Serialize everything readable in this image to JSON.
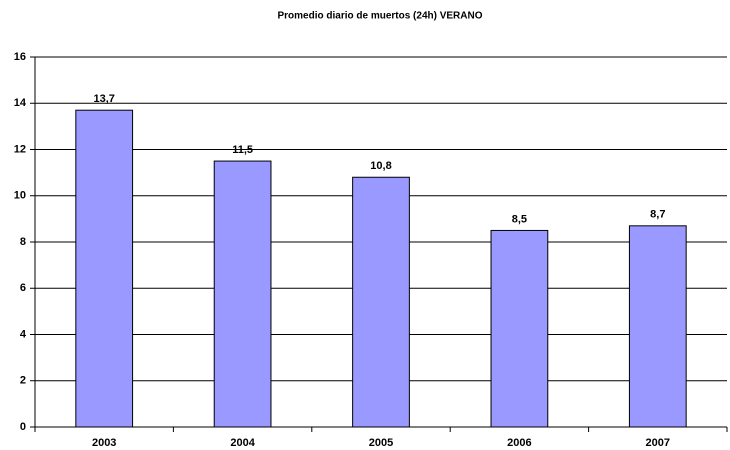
{
  "chart_data": {
    "type": "bar",
    "title": "Promedio diario de muertos (24h) VERANO",
    "categories": [
      "2003",
      "2004",
      "2005",
      "2006",
      "2007"
    ],
    "values": [
      13.7,
      11.5,
      10.8,
      8.5,
      8.7
    ],
    "value_labels": [
      "13,7",
      "11,5",
      "10,8",
      "8,5",
      "8,7"
    ],
    "color": "#9999ff",
    "ylim": [
      0,
      16
    ],
    "yticks": [
      0,
      2,
      4,
      6,
      8,
      10,
      12,
      14,
      16
    ],
    "grid": true
  }
}
